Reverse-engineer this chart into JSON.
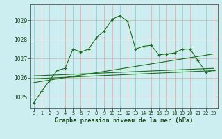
{
  "title": "Graphe pression niveau de la mer (hPa)",
  "background_color": "#cceef0",
  "line_color": "#1a6e1a",
  "x_ticks": [
    0,
    1,
    2,
    3,
    4,
    5,
    6,
    7,
    8,
    9,
    10,
    11,
    12,
    13,
    14,
    15,
    16,
    17,
    18,
    19,
    20,
    21,
    22,
    23
  ],
  "y_ticks": [
    1025,
    1026,
    1027,
    1028,
    1029
  ],
  "ylim": [
    1024.4,
    1029.85
  ],
  "xlim": [
    -0.5,
    23.5
  ],
  "series1": [
    1024.7,
    1025.3,
    1025.85,
    1026.4,
    1026.5,
    1027.5,
    1027.35,
    1027.5,
    1028.1,
    1028.45,
    1029.05,
    1029.25,
    1028.95,
    1027.5,
    1027.65,
    1027.7,
    1027.2,
    1027.25,
    1027.3,
    1027.5,
    1027.5,
    1026.9,
    1026.3,
    1026.4
  ],
  "series2_x": [
    0,
    23
  ],
  "series2_y": [
    1025.75,
    1027.25
  ],
  "series3_x": [
    0,
    23
  ],
  "series3_y": [
    1025.95,
    1026.38
  ],
  "series4_x": [
    0,
    23
  ],
  "series4_y": [
    1026.1,
    1026.5
  ]
}
